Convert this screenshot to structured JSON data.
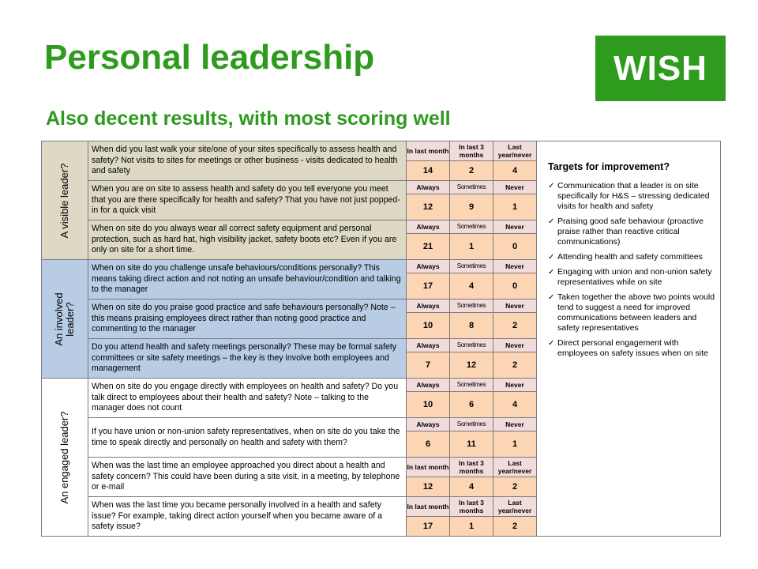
{
  "title": "Personal leadership",
  "subtitle": "Also decent results, with most scoring well",
  "logo": "WISH",
  "colors": {
    "green": "#2e9a1e",
    "visible_section": "#ddd9c4",
    "involved_section": "#b8cce4",
    "header_cell": "#f2dcdb",
    "value_cell": "#fcd5b4"
  },
  "sections": [
    {
      "label": "A visible leader?",
      "questions": [
        {
          "text": "When did you last walk your site/one of your sites specifically to assess health and safety? Not visits to sites for meetings or other business - visits dedicated to health and safety",
          "headers": [
            "In last month",
            "In last 3 months",
            "Last year/never"
          ],
          "values": [
            "14",
            "2",
            "4"
          ]
        },
        {
          "text": "When you are on site to assess health and safety do you tell everyone you meet that you are there specifically for health and safety? That you have not just popped-in for a quick visit",
          "headers": [
            "Always",
            "Sometimes",
            "Never"
          ],
          "values": [
            "12",
            "9",
            "1"
          ]
        },
        {
          "text": "When on site do you always wear all correct safety equipment and personal protection, such as hard hat, high visibility jacket, safety boots etc? Even if you are only on site for a short time.",
          "headers": [
            "Always",
            "Sometimes",
            "Never"
          ],
          "values": [
            "21",
            "1",
            "0"
          ]
        }
      ]
    },
    {
      "label_lines": [
        "An involved",
        "leader?"
      ],
      "questions": [
        {
          "text": "When on site do you challenge unsafe behaviours/conditions personally? This means taking direct action and not noting an unsafe behaviour/condition and talking to the manager",
          "headers": [
            "Always",
            "Sometimes",
            "Never"
          ],
          "values": [
            "17",
            "4",
            "0"
          ]
        },
        {
          "text": "When on site do you praise good practice and safe behaviours personally? Note – this means praising employees direct rather than noting good practice and commenting to the manager",
          "headers": [
            "Always",
            "Sometimes",
            "Never"
          ],
          "values": [
            "10",
            "8",
            "2"
          ]
        },
        {
          "text": "Do you attend health and safety meetings personally? These may be formal safety committees or site safety meetings – the key is they involve both employees and management",
          "headers": [
            "Always",
            "Sometimes",
            "Never"
          ],
          "values": [
            "7",
            "12",
            "2"
          ]
        }
      ]
    },
    {
      "label": "An engaged leader?",
      "questions": [
        {
          "text": "When on site do you engage directly with employees on health and safety? Do you talk direct to employees about their health and safety? Note – talking to the manager does not count",
          "headers": [
            "Always",
            "Sometimes",
            "Never"
          ],
          "values": [
            "10",
            "6",
            "4"
          ]
        },
        {
          "text": "If you have union or non-union safety representatives, when on site do you take the time to speak directly and personally on health and safety with them?",
          "headers": [
            "Always",
            "Sometimes",
            "Never"
          ],
          "values": [
            "6",
            "11",
            "1"
          ]
        },
        {
          "text": "When was the last time an employee approached you direct about a health and safety concern? This could have been during a site visit, in a meeting, by telephone or e-mail",
          "headers": [
            "In last month",
            "In last 3 months",
            "Last year/never"
          ],
          "values": [
            "12",
            "4",
            "2"
          ]
        },
        {
          "text": "When was the last time you became personally involved in a health and safety issue? For example, taking direct action yourself when you became aware of a safety issue?",
          "headers": [
            "In last month",
            "In last 3 months",
            "Last year/never"
          ],
          "values": [
            "17",
            "1",
            "2"
          ]
        }
      ]
    }
  ],
  "targets": {
    "title": "Targets for improvement?",
    "items": [
      "Communication that a leader is on site specifically for H&S – stressing dedicated visits for health and safety",
      "Praising good safe behaviour (proactive praise rather than reactive critical communications)",
      "Attending health and safety committees",
      "Engaging with union and non-union safety representatives while on site",
      "Taken together the above two points would tend to suggest a need for improved communications between leaders and safety representatives",
      "Direct personal engagement with employees on safety issues when on site"
    ]
  }
}
